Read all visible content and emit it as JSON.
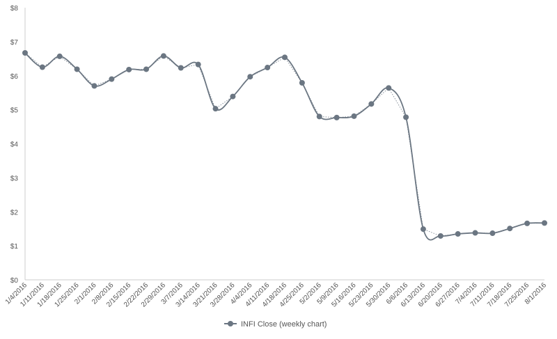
{
  "chart_data": {
    "type": "line",
    "title": "",
    "xlabel": "",
    "ylabel": "",
    "ylim": [
      0,
      8
    ],
    "yticks": [
      "$0",
      "$1",
      "$2",
      "$3",
      "$4",
      "$5",
      "$6",
      "$7",
      "$8"
    ],
    "grid": false,
    "legend_position": "bottom",
    "categories": [
      "1/4/2016",
      "1/11/2016",
      "1/18/2016",
      "1/25/2016",
      "2/1/2016",
      "2/8/2016",
      "2/15/2016",
      "2/22/2016",
      "2/29/2016",
      "3/7/2016",
      "3/14/2016",
      "3/21/2016",
      "3/28/2016",
      "4/4/2016",
      "4/11/2016",
      "4/18/2016",
      "4/25/2016",
      "5/2/2016",
      "5/9/2016",
      "5/16/2016",
      "5/23/2016",
      "5/30/2016",
      "6/6/2016",
      "6/13/2016",
      "6/20/2016",
      "6/27/2016",
      "7/4/2016",
      "7/11/2016",
      "7/18/2016",
      "7/25/2016",
      "8/1/2016"
    ],
    "series": [
      {
        "name": "INFI Close (weekly chart)",
        "color": "#6b7682",
        "values": [
          6.67,
          6.25,
          6.57,
          6.19,
          5.7,
          5.9,
          6.18,
          6.19,
          6.58,
          6.23,
          6.33,
          5.03,
          5.39,
          5.97,
          6.24,
          6.54,
          5.79,
          4.8,
          4.77,
          4.81,
          5.17,
          5.64,
          4.78,
          1.49,
          1.29,
          1.35,
          1.38,
          1.37,
          1.51,
          1.66,
          1.67
        ]
      }
    ],
    "trendline": {
      "color": "#8a939d",
      "style": "dotted"
    }
  },
  "colors": {
    "axis": "#cccccc",
    "text": "#555555"
  }
}
